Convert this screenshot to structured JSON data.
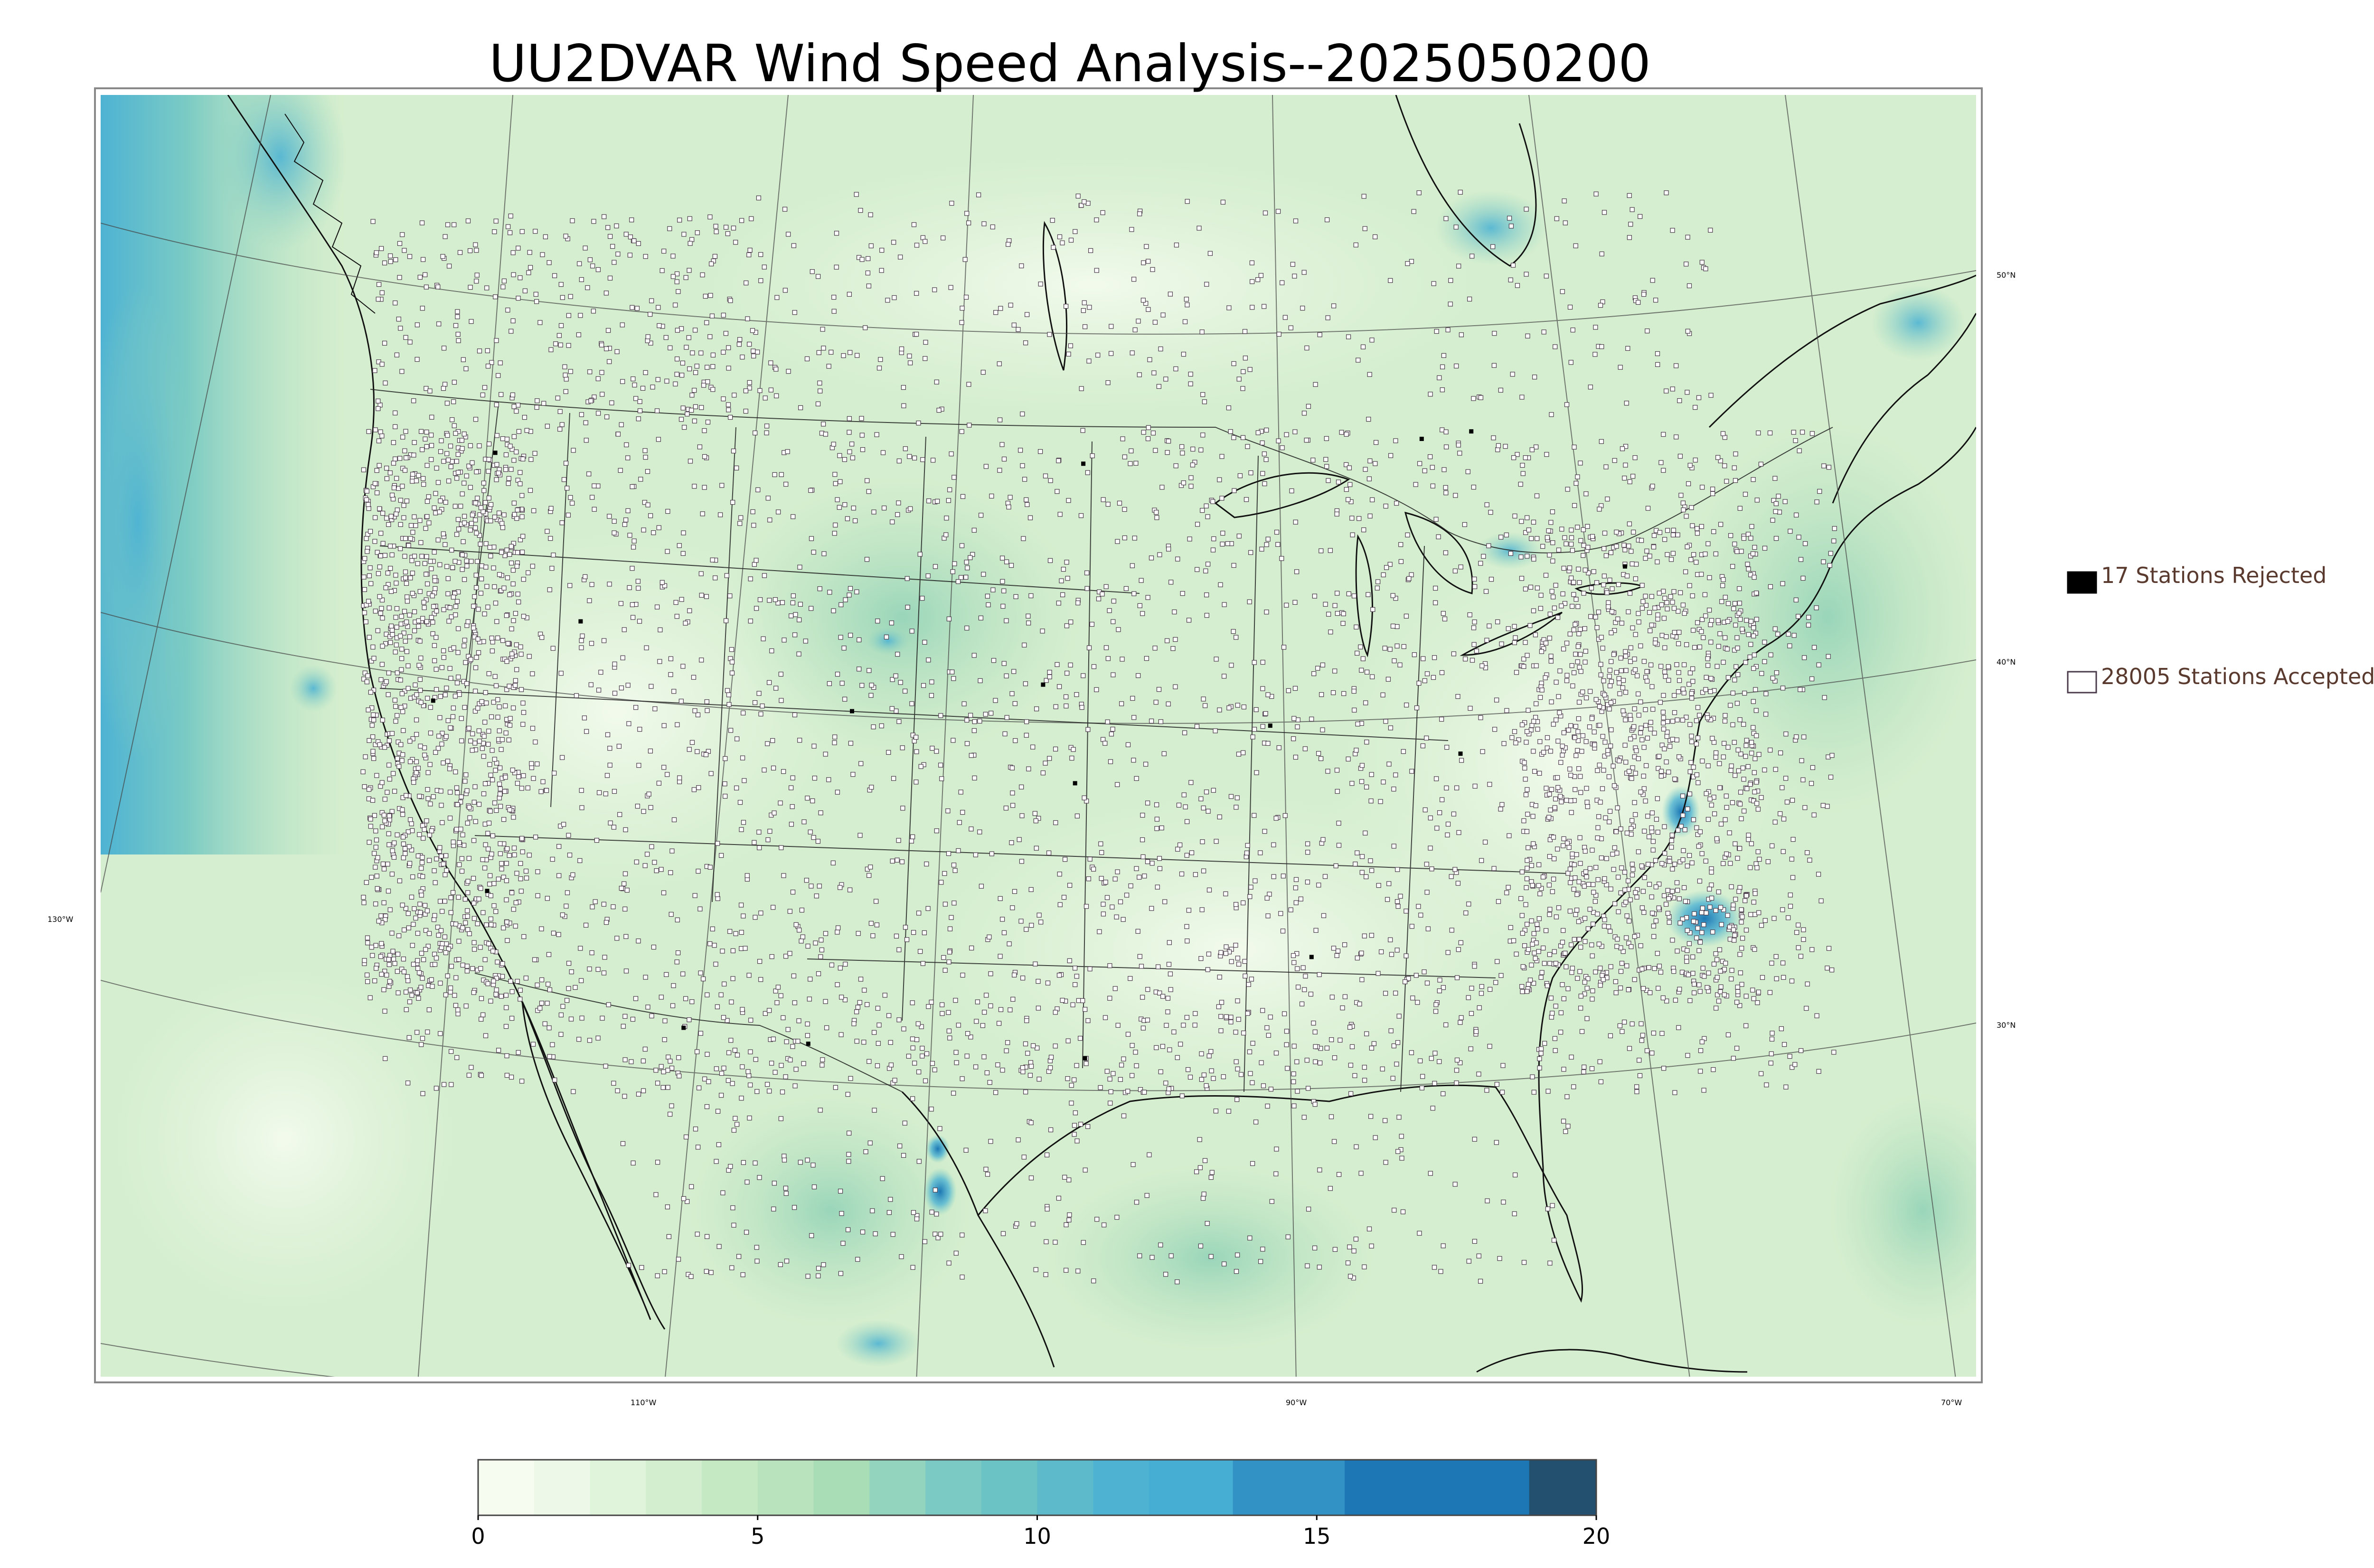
{
  "title": "UU2DVAR Wind Speed Analysis--2025050200",
  "legend": {
    "rejected_label": "17 Stations Rejected",
    "accepted_label": "28005 Stations Accepted"
  },
  "graticule_labels": {
    "lat_50": "50°N",
    "lat_40": "40°N",
    "lat_30": "30°N",
    "lon_130": "130°W",
    "lon_110": "110°W",
    "lon_90": "90°W",
    "lon_70": "70°W"
  },
  "colorbar": {
    "min": 0,
    "max": 20,
    "ticks": [
      "0",
      "5",
      "10",
      "15",
      "20"
    ],
    "bins": [
      {
        "from": 0,
        "to": 1,
        "color": "#f7fcf0"
      },
      {
        "from": 1,
        "to": 2,
        "color": "#eef8e9"
      },
      {
        "from": 2,
        "to": 3,
        "color": "#e0f3db"
      },
      {
        "from": 3,
        "to": 4,
        "color": "#d3eece"
      },
      {
        "from": 4,
        "to": 5,
        "color": "#c5e9c3"
      },
      {
        "from": 5,
        "to": 6,
        "color": "#b8e3bc"
      },
      {
        "from": 6,
        "to": 7,
        "color": "#a8ddb5"
      },
      {
        "from": 7,
        "to": 8,
        "color": "#92d4bd"
      },
      {
        "from": 8,
        "to": 9,
        "color": "#7bcbc4"
      },
      {
        "from": 9,
        "to": 10,
        "color": "#6cc3c6"
      },
      {
        "from": 10,
        "to": 11,
        "color": "#5dbacb"
      },
      {
        "from": 11,
        "to": 12,
        "color": "#4eb3d3"
      },
      {
        "from": 12,
        "to": 13.5,
        "color": "#46aed2"
      },
      {
        "from": 13.5,
        "to": 15.5,
        "color": "#3392c5"
      },
      {
        "from": 15.5,
        "to": 18.8,
        "color": "#1c77b4"
      },
      {
        "from": 18.8,
        "to": 20,
        "color": "#23506f"
      }
    ]
  },
  "colors": {
    "rejected_marker": "#000000",
    "accepted_marker": "#ffffff",
    "station_outline": "#4a3a4a",
    "coastline": "#111111",
    "background_field": "#d5eecf"
  }
}
